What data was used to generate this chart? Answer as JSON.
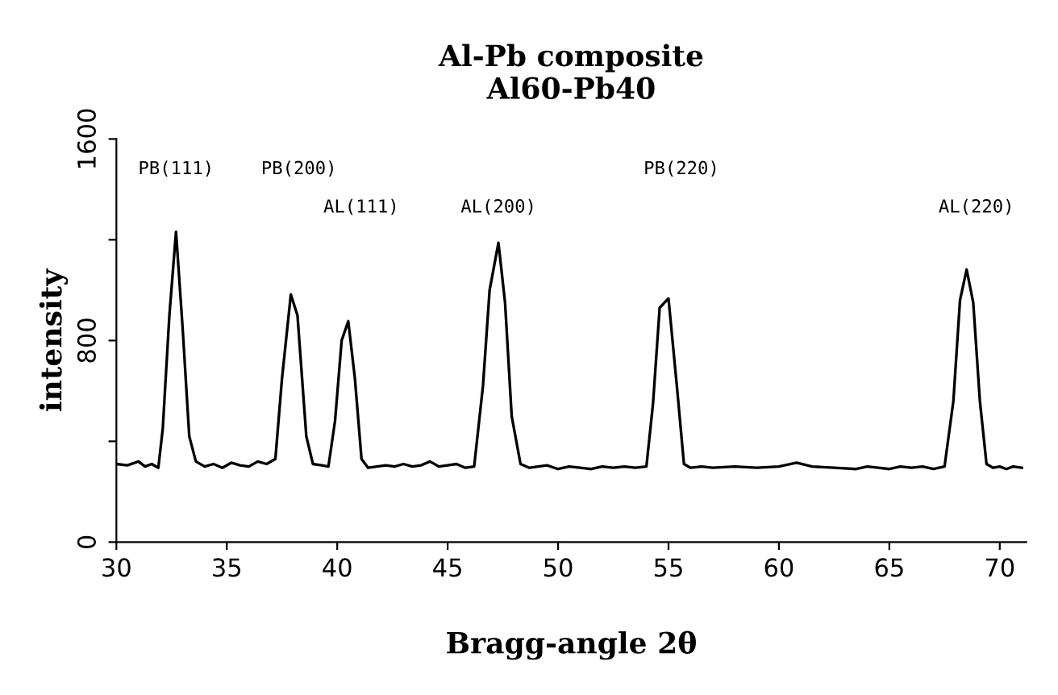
{
  "chart_data": {
    "type": "line",
    "title": "Al-Pb composite\nAl60-Pb40",
    "xlabel": "Bragg-angle 2θ",
    "ylabel": "intensity",
    "xlim": [
      30,
      71.2
    ],
    "ylim": [
      0,
      1600
    ],
    "xticks": [
      30,
      35,
      40,
      45,
      50,
      55,
      60,
      65,
      70
    ],
    "yticks": [
      0,
      {
        "value": 400,
        "label": null
      },
      800,
      {
        "value": 1200,
        "label": null
      },
      1600
    ],
    "grid": false,
    "legend": false,
    "marker": "none",
    "line_style": "solid",
    "series": [
      {
        "color": "#000000",
        "x": [
          30.0,
          30.5,
          31.0,
          31.3,
          31.6,
          31.9,
          32.1,
          32.4,
          32.7,
          33.0,
          33.3,
          33.6,
          34.0,
          34.4,
          34.8,
          35.2,
          35.6,
          36.0,
          36.4,
          36.8,
          37.2,
          37.5,
          37.9,
          38.2,
          38.6,
          38.9,
          39.3,
          39.6,
          39.9,
          40.2,
          40.5,
          40.8,
          41.1,
          41.4,
          41.8,
          42.2,
          42.6,
          43.0,
          43.4,
          43.8,
          44.2,
          44.6,
          45.0,
          45.4,
          45.8,
          46.2,
          46.6,
          46.9,
          47.3,
          47.6,
          47.9,
          48.3,
          48.7,
          49.1,
          49.5,
          50.0,
          50.5,
          51.0,
          51.5,
          52.0,
          52.5,
          53.0,
          53.5,
          54.0,
          54.3,
          54.6,
          55.0,
          55.4,
          55.7,
          56.0,
          56.5,
          57.0,
          58.0,
          59.0,
          60.0,
          60.8,
          61.5,
          62.5,
          63.5,
          64.0,
          64.5,
          65.0,
          65.5,
          66.0,
          66.5,
          67.0,
          67.5,
          67.9,
          68.2,
          68.5,
          68.8,
          69.1,
          69.4,
          69.7,
          70.0,
          70.3,
          70.6,
          71.0
        ],
        "values": [
          310,
          305,
          320,
          300,
          310,
          295,
          450,
          900,
          1232,
          850,
          420,
          320,
          300,
          310,
          295,
          315,
          305,
          300,
          320,
          310,
          330,
          650,
          983,
          900,
          420,
          310,
          305,
          300,
          480,
          800,
          877,
          650,
          330,
          295,
          300,
          305,
          300,
          310,
          300,
          305,
          320,
          300,
          305,
          310,
          295,
          300,
          620,
          1000,
          1188,
          950,
          500,
          310,
          295,
          300,
          305,
          290,
          300,
          295,
          290,
          300,
          295,
          300,
          295,
          300,
          550,
          930,
          967,
          600,
          310,
          295,
          300,
          295,
          300,
          295,
          300,
          315,
          300,
          295,
          290,
          300,
          295,
          290,
          300,
          295,
          300,
          290,
          300,
          560,
          960,
          1082,
          950,
          560,
          310,
          295,
          300,
          290,
          300,
          295
        ]
      }
    ],
    "annotations": [
      "PB(111)",
      "PB(200)",
      "AL(111)",
      "AL(200)",
      "PB(220)",
      "AL(220)"
    ]
  }
}
